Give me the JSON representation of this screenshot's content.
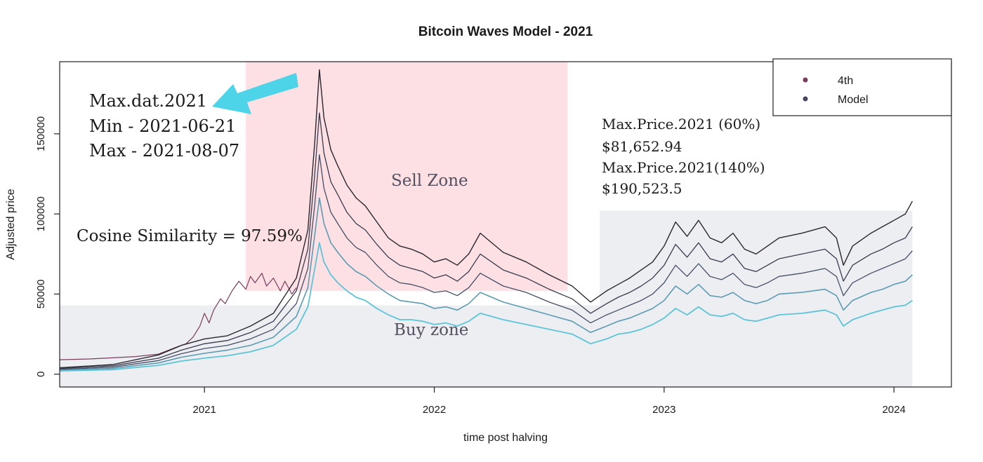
{
  "chart_data": {
    "type": "line",
    "title": "Bitcoin Waves Model - 2021",
    "xlabel": "time post halving",
    "ylabel": "Adjusted price",
    "xlim": [
      2020.37,
      2024.25
    ],
    "ylim": [
      -8000,
      195000
    ],
    "x_ticks": [
      {
        "value": 2021.0,
        "label": "2021"
      },
      {
        "value": 2022.0,
        "label": "2022"
      },
      {
        "value": 2023.0,
        "label": "2023"
      },
      {
        "value": 2024.0,
        "label": "2024"
      }
    ],
    "y_ticks": [
      {
        "value": 0,
        "label": "0"
      },
      {
        "value": 50000,
        "label": "50000"
      },
      {
        "value": 100000,
        "label": "100000"
      },
      {
        "value": 150000,
        "label": "150000"
      }
    ],
    "legend": {
      "position": "top-right",
      "entries": [
        {
          "label": "4th",
          "color": "#7a3b5c"
        },
        {
          "label": "Model",
          "color": "#4a4560"
        }
      ]
    },
    "zones": [
      {
        "label": "Sell Zone",
        "x": [
          2021.18,
          2022.58
        ],
        "y": [
          52000,
          195000
        ],
        "color": "#fde0e4"
      },
      {
        "label": "Buy zone",
        "x": [
          2020.37,
          2024.08
        ],
        "y": [
          -8000,
          43000
        ],
        "color": "#eceef2"
      },
      {
        "label": "",
        "x": [
          2022.72,
          2024.08
        ],
        "y": [
          43000,
          102000
        ],
        "color": "#eceef2"
      }
    ],
    "series": [
      {
        "name": "4th",
        "color": "#7a3b5c",
        "width": 1.2,
        "x": [
          2020.37,
          2020.5,
          2020.6,
          2020.7,
          2020.8,
          2020.88,
          2020.92,
          2020.95,
          2020.98,
          2021.0,
          2021.02,
          2021.04,
          2021.07,
          2021.09,
          2021.12,
          2021.15,
          2021.18,
          2021.2,
          2021.22,
          2021.25,
          2021.27,
          2021.3,
          2021.33,
          2021.35,
          2021.38,
          2021.4
        ],
        "y": [
          9000,
          9500,
          10200,
          11000,
          12500,
          17000,
          19000,
          23000,
          30000,
          38000,
          32000,
          40000,
          47000,
          44000,
          52000,
          58000,
          53000,
          61000,
          57000,
          63000,
          55000,
          60000,
          52000,
          58000,
          50000,
          54000
        ]
      },
      {
        "name": "Model",
        "color": "#2a2630",
        "width": 1.4,
        "x": [
          2020.37,
          2020.6,
          2020.8,
          2020.9,
          2021.0,
          2021.1,
          2021.2,
          2021.3,
          2021.4,
          2021.45,
          2021.48,
          2021.5,
          2021.52,
          2021.55,
          2021.58,
          2021.62,
          2021.66,
          2021.7,
          2021.75,
          2021.8,
          2021.85,
          2021.9,
          2021.95,
          2022.0,
          2022.05,
          2022.1,
          2022.15,
          2022.2,
          2022.3,
          2022.4,
          2022.5,
          2022.6,
          2022.68,
          2022.75,
          2022.8,
          2022.85,
          2022.9,
          2022.95,
          2023.0,
          2023.05,
          2023.1,
          2023.15,
          2023.2,
          2023.25,
          2023.3,
          2023.35,
          2023.4,
          2023.45,
          2023.5,
          2023.6,
          2023.7,
          2023.75,
          2023.78,
          2023.82,
          2023.9,
          2023.95,
          2024.0,
          2024.05,
          2024.08
        ],
        "y": [
          4000,
          6000,
          12000,
          18000,
          22000,
          24000,
          30000,
          38000,
          60000,
          90000,
          145000,
          190000,
          160000,
          140000,
          130000,
          118000,
          110000,
          105000,
          95000,
          85000,
          80000,
          78000,
          75000,
          70000,
          72000,
          68000,
          75000,
          88000,
          76000,
          70000,
          62000,
          55000,
          45000,
          52000,
          56000,
          60000,
          65000,
          70000,
          80000,
          95000,
          86000,
          96000,
          85000,
          82000,
          88000,
          78000,
          75000,
          80000,
          85000,
          88000,
          92000,
          85000,
          68000,
          80000,
          88000,
          92000,
          96000,
          100000,
          108000
        ]
      },
      {
        "name": "Model",
        "color": "#3a3a4e",
        "width": 1.3,
        "x": [
          2020.37,
          2020.6,
          2020.8,
          2020.9,
          2021.0,
          2021.1,
          2021.2,
          2021.3,
          2021.4,
          2021.45,
          2021.48,
          2021.5,
          2021.52,
          2021.55,
          2021.58,
          2021.62,
          2021.66,
          2021.7,
          2021.75,
          2021.8,
          2021.85,
          2021.9,
          2021.95,
          2022.0,
          2022.05,
          2022.1,
          2022.15,
          2022.2,
          2022.3,
          2022.4,
          2022.5,
          2022.6,
          2022.68,
          2022.75,
          2022.8,
          2022.85,
          2022.9,
          2022.95,
          2023.0,
          2023.05,
          2023.1,
          2023.15,
          2023.2,
          2023.25,
          2023.3,
          2023.35,
          2023.4,
          2023.45,
          2023.5,
          2023.6,
          2023.7,
          2023.75,
          2023.78,
          2023.82,
          2023.9,
          2023.95,
          2024.0,
          2024.05,
          2024.08
        ],
        "y": [
          3500,
          5200,
          10000,
          15000,
          19000,
          21000,
          26000,
          33000,
          52000,
          78000,
          125000,
          163000,
          138000,
          120000,
          112000,
          101000,
          94000,
          90000,
          81000,
          73000,
          68000,
          66000,
          64000,
          60000,
          62000,
          58000,
          64000,
          75000,
          65000,
          60000,
          53000,
          47000,
          38000,
          44000,
          48000,
          51000,
          55000,
          60000,
          68000,
          81000,
          73000,
          82000,
          72000,
          70000,
          75000,
          66000,
          64000,
          68000,
          72000,
          75000,
          78000,
          72000,
          58000,
          68000,
          75000,
          78000,
          82000,
          85000,
          92000
        ]
      },
      {
        "name": "Model",
        "color": "#454f66",
        "width": 1.3,
        "x": [
          2020.37,
          2020.6,
          2020.8,
          2020.9,
          2021.0,
          2021.1,
          2021.2,
          2021.3,
          2021.4,
          2021.45,
          2021.48,
          2021.5,
          2021.52,
          2021.55,
          2021.58,
          2021.62,
          2021.66,
          2021.7,
          2021.75,
          2021.8,
          2021.85,
          2021.9,
          2021.95,
          2022.0,
          2022.05,
          2022.1,
          2022.15,
          2022.2,
          2022.3,
          2022.4,
          2022.5,
          2022.6,
          2022.68,
          2022.75,
          2022.8,
          2022.85,
          2022.9,
          2022.95,
          2023.0,
          2023.05,
          2023.1,
          2023.15,
          2023.2,
          2023.25,
          2023.3,
          2023.35,
          2023.4,
          2023.45,
          2023.5,
          2023.6,
          2023.7,
          2023.75,
          2023.78,
          2023.82,
          2023.9,
          2023.95,
          2024.0,
          2024.05,
          2024.08
        ],
        "y": [
          3000,
          4400,
          8500,
          12800,
          16000,
          18000,
          22000,
          28000,
          44000,
          66000,
          106000,
          137000,
          116000,
          101000,
          94000,
          85000,
          79000,
          76000,
          68000,
          61000,
          57000,
          56000,
          54000,
          51000,
          52000,
          49000,
          54000,
          63000,
          55000,
          51000,
          45000,
          40000,
          32000,
          37000,
          40000,
          43000,
          46000,
          50000,
          57000,
          68000,
          61000,
          69000,
          61000,
          59000,
          63000,
          56000,
          54000,
          57000,
          61000,
          63000,
          66000,
          61000,
          49000,
          57000,
          63000,
          66000,
          69000,
          72000,
          77000
        ]
      },
      {
        "name": "Model",
        "color": "#5b9bb3",
        "width": 1.6,
        "x": [
          2020.37,
          2020.6,
          2020.8,
          2020.9,
          2021.0,
          2021.1,
          2021.2,
          2021.3,
          2021.4,
          2021.45,
          2021.48,
          2021.5,
          2021.52,
          2021.55,
          2021.58,
          2021.62,
          2021.66,
          2021.7,
          2021.75,
          2021.8,
          2021.85,
          2021.9,
          2021.95,
          2022.0,
          2022.05,
          2022.1,
          2022.15,
          2022.2,
          2022.3,
          2022.4,
          2022.5,
          2022.6,
          2022.68,
          2022.75,
          2022.8,
          2022.85,
          2022.9,
          2022.95,
          2023.0,
          2023.05,
          2023.1,
          2023.15,
          2023.2,
          2023.25,
          2023.3,
          2023.35,
          2023.4,
          2023.45,
          2023.5,
          2023.6,
          2023.7,
          2023.75,
          2023.78,
          2023.82,
          2023.9,
          2023.95,
          2024.0,
          2024.05,
          2024.08
        ],
        "y": [
          2500,
          3600,
          7000,
          10600,
          13000,
          15000,
          18000,
          23000,
          36000,
          54000,
          87000,
          110000,
          94000,
          82000,
          76000,
          69000,
          64000,
          61000,
          55000,
          50000,
          46000,
          45000,
          44000,
          41000,
          42000,
          40000,
          44000,
          51000,
          45000,
          41000,
          37000,
          33000,
          26000,
          30000,
          33000,
          35000,
          38000,
          41000,
          46000,
          55000,
          50000,
          56000,
          49000,
          48000,
          51000,
          46000,
          44000,
          46000,
          50000,
          51000,
          53000,
          49000,
          40000,
          46000,
          51000,
          53000,
          56000,
          58000,
          62000
        ]
      },
      {
        "name": "Model",
        "color": "#5cc4d8",
        "width": 1.8,
        "x": [
          2020.37,
          2020.6,
          2020.8,
          2020.9,
          2021.0,
          2021.1,
          2021.2,
          2021.3,
          2021.4,
          2021.45,
          2021.48,
          2021.5,
          2021.52,
          2021.55,
          2021.58,
          2021.62,
          2021.66,
          2021.7,
          2021.75,
          2021.8,
          2021.85,
          2021.9,
          2021.95,
          2022.0,
          2022.05,
          2022.1,
          2022.15,
          2022.2,
          2022.3,
          2022.4,
          2022.5,
          2022.6,
          2022.68,
          2022.75,
          2022.8,
          2022.85,
          2022.9,
          2022.95,
          2023.0,
          2023.05,
          2023.1,
          2023.15,
          2023.2,
          2023.25,
          2023.3,
          2023.35,
          2023.4,
          2023.45,
          2023.5,
          2023.6,
          2023.7,
          2023.75,
          2023.78,
          2023.82,
          2023.9,
          2023.95,
          2024.0,
          2024.05,
          2024.08
        ],
        "y": [
          2000,
          2800,
          5500,
          8200,
          10000,
          11500,
          14000,
          18000,
          28000,
          42000,
          66000,
          82000,
          70000,
          62000,
          57000,
          52000,
          48000,
          46000,
          41000,
          37000,
          34000,
          34000,
          33000,
          31000,
          32000,
          30000,
          33000,
          38000,
          34000,
          31000,
          28000,
          25000,
          19000,
          22000,
          25000,
          26000,
          28000,
          31000,
          35000,
          41000,
          37000,
          42000,
          37000,
          36000,
          38000,
          34000,
          33000,
          35000,
          37000,
          38000,
          40000,
          37000,
          30000,
          34000,
          38000,
          40000,
          42000,
          43000,
          46000
        ]
      }
    ]
  },
  "annotations": {
    "left_lines": [
      "Max.dat.2021",
      "Min  - 2021-06-21",
      "Max - 2021-08-07"
    ],
    "cosine": "Cosine Similarity = 97.59%",
    "right_lines": [
      "Max.Price.2021 (60%)",
      "$81,652.94",
      "Max.Price.2021(140%)",
      "$190,523.5"
    ],
    "sell_zone": "Sell Zone",
    "buy_zone": "Buy zone",
    "arrow_color": "#4dd4e8"
  }
}
